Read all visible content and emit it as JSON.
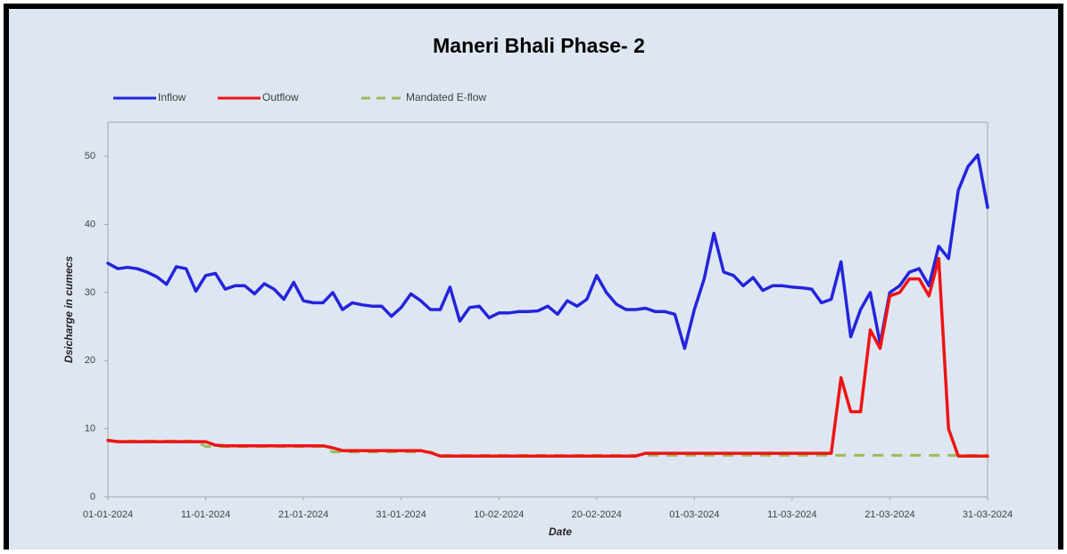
{
  "chart_data": {
    "type": "line",
    "title": "Maneri Bhali Phase- 2",
    "xlabel": "Date",
    "ylabel": "Dsicharge in cumecs",
    "categories": [
      "01-01-2024",
      null,
      null,
      null,
      null,
      null,
      null,
      null,
      null,
      null,
      "11-01-2024",
      null,
      null,
      null,
      null,
      null,
      null,
      null,
      null,
      null,
      "21-01-2024",
      null,
      null,
      null,
      null,
      null,
      null,
      null,
      null,
      null,
      "31-01-2024",
      null,
      null,
      null,
      null,
      null,
      null,
      null,
      null,
      null,
      "10-02-2024",
      null,
      null,
      null,
      null,
      null,
      null,
      null,
      null,
      null,
      "20-02-2024",
      null,
      null,
      null,
      null,
      null,
      null,
      null,
      null,
      null,
      "01-03-2024",
      null,
      null,
      null,
      null,
      null,
      null,
      null,
      null,
      null,
      "11-03-2024",
      null,
      null,
      null,
      null,
      null,
      null,
      null,
      null,
      null,
      "21-03-2024",
      null,
      null,
      null,
      null,
      null,
      null,
      null,
      null,
      null,
      "31-03-2024"
    ],
    "series": [
      {
        "name": "Inflow",
        "color": "#2424dc",
        "dashed": false,
        "values": [
          34.3,
          33.5,
          33.7,
          33.5,
          33,
          32.3,
          31.2,
          33.8,
          33.5,
          30.2,
          32.5,
          32.8,
          30.5,
          31,
          31,
          29.8,
          31.3,
          30.5,
          29,
          31.5,
          28.8,
          28.5,
          28.5,
          30,
          27.5,
          28.5,
          28.2,
          28,
          28,
          26.5,
          27.8,
          29.8,
          28.8,
          27.5,
          27.5,
          30.8,
          25.8,
          27.8,
          28,
          26.3,
          27,
          27,
          27.2,
          27.2,
          27.3,
          28,
          26.8,
          28.8,
          28,
          29,
          32.5,
          30,
          28.3,
          27.5,
          27.5,
          27.7,
          27.2,
          27.2,
          26.8,
          21.8,
          27.5,
          32,
          38.7,
          33,
          32.5,
          31,
          32.2,
          30.3,
          31,
          31,
          30.8,
          30.7,
          30.5,
          28.5,
          29,
          34.5,
          23.5,
          27.5,
          30,
          22.5,
          30,
          31,
          33,
          33.5,
          31,
          36.8,
          35,
          45,
          48.5,
          50.2,
          42.5
        ]
      },
      {
        "name": "Outflow",
        "color": "#ee1414",
        "dashed": false,
        "values": [
          8.3,
          8.1,
          8.1,
          8.1,
          8.1,
          8.1,
          8.1,
          8.1,
          8.1,
          8.1,
          8.1,
          7.6,
          7.5,
          7.5,
          7.5,
          7.5,
          7.5,
          7.5,
          7.5,
          7.5,
          7.5,
          7.5,
          7.5,
          7.2,
          6.8,
          6.8,
          6.8,
          6.8,
          6.8,
          6.8,
          6.8,
          6.8,
          6.8,
          6.5,
          6,
          6,
          6,
          6,
          6,
          6,
          6,
          6,
          6,
          6,
          6,
          6,
          6,
          6,
          6,
          6,
          6,
          6,
          6,
          6,
          6,
          6.4,
          6.4,
          6.4,
          6.4,
          6.4,
          6.4,
          6.4,
          6.4,
          6.4,
          6.4,
          6.4,
          6.4,
          6.4,
          6.4,
          6.4,
          6.4,
          6.4,
          6.4,
          6.4,
          6.4,
          17.5,
          12.5,
          12.5,
          24.5,
          21.8,
          29.5,
          30,
          32,
          32,
          29.5,
          35,
          10,
          6,
          6,
          6,
          6
        ]
      },
      {
        "name": "Mandated E-flow",
        "color": "#9bbb59",
        "dashed": true,
        "values": [
          8.2,
          8.2,
          8.2,
          8.2,
          8.2,
          8.2,
          8.2,
          8.2,
          8.2,
          8.2,
          7.4,
          7.4,
          7.4,
          7.4,
          7.4,
          7.4,
          7.4,
          7.4,
          7.4,
          7.4,
          7.4,
          7.4,
          7.4,
          6.6,
          6.6,
          6.6,
          6.6,
          6.6,
          6.6,
          6.6,
          6.6,
          6.6,
          6.6,
          6.6,
          6.1,
          6.1,
          6.1,
          6.1,
          6.1,
          6.1,
          6.1,
          6.1,
          6.1,
          6.1,
          6.1,
          6.1,
          6.1,
          6.1,
          6.1,
          6.1,
          6.1,
          6.1,
          6.1,
          6.1,
          6.1,
          6.1,
          6.1,
          6.1,
          6.1,
          6.1,
          6.1,
          6.1,
          6.1,
          6.1,
          6.1,
          6.1,
          6.1,
          6.1,
          6.1,
          6.1,
          6.1,
          6.1,
          6.1,
          6.1,
          6.1,
          6.1,
          6.1,
          6.1,
          6.1,
          6.1,
          6.1,
          6.1,
          6.1,
          6.1,
          6.1,
          6.1,
          6.1,
          6.1,
          6.1,
          6.1,
          6.1
        ]
      }
    ],
    "ylim": [
      0,
      55
    ],
    "yticks": [
      0,
      10,
      20,
      30,
      40,
      50
    ],
    "legend": "top-left"
  }
}
